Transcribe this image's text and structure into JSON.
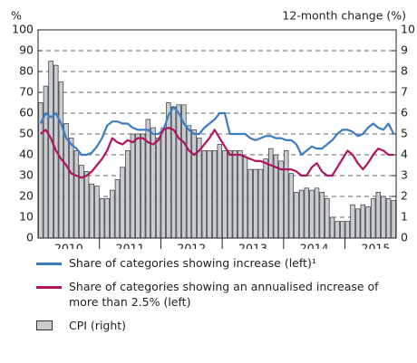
{
  "chart_data": {
    "type": "bar_line",
    "y_label": "%",
    "y2_label": "12-month change (%)",
    "years": [
      "2010",
      "2011",
      "2012",
      "2013",
      "2014",
      "2015"
    ],
    "categories": [
      null,
      null,
      null,
      null,
      null,
      null,
      null,
      null,
      null,
      null,
      null,
      null,
      null,
      null,
      null,
      null,
      null,
      null,
      null,
      null,
      null,
      null,
      null,
      null,
      null,
      null,
      null,
      null,
      null,
      null,
      null,
      null,
      null,
      null,
      null,
      null,
      null,
      null,
      null,
      null,
      null,
      null,
      null,
      null,
      null,
      null,
      null,
      null,
      null,
      null,
      null,
      null,
      null,
      null,
      null,
      null,
      null,
      null,
      null,
      null,
      null,
      null,
      null,
      null,
      null,
      null,
      null,
      null,
      null,
      null
    ],
    "ylim": [
      0,
      100
    ],
    "yticks": [
      0,
      10,
      20,
      30,
      40,
      50,
      60,
      70,
      80,
      90,
      100
    ],
    "y2lim": [
      0,
      10
    ],
    "y2ticks": [
      0,
      1,
      2,
      3,
      4,
      5,
      6,
      7,
      8,
      9,
      10
    ],
    "grid": true,
    "series": [
      {
        "name": "Share of categories showing increase (left)¹",
        "type": "line",
        "color": "#3b7cc4",
        "values": [
          55,
          60,
          58,
          60,
          55,
          48,
          45,
          43,
          40,
          40,
          41,
          44,
          48,
          54,
          56,
          56,
          55,
          55,
          53,
          52,
          52,
          52,
          50,
          50,
          52,
          59,
          63,
          60,
          55,
          52,
          50,
          50,
          53,
          55,
          57,
          60,
          60,
          50,
          50,
          50,
          50,
          48,
          47,
          48,
          49,
          49,
          48,
          48,
          47,
          47,
          45,
          40,
          42,
          44,
          43,
          43,
          45,
          47,
          50,
          52,
          52,
          51,
          49,
          50,
          53,
          55,
          53,
          52,
          55,
          50
        ]
      },
      {
        "name": "Share of categories showing an annualised increase of more than 2.5% (left)",
        "type": "line",
        "color": "#b3135f",
        "values": [
          50,
          52,
          48,
          42,
          38,
          35,
          31,
          30,
          29,
          30,
          32,
          35,
          38,
          42,
          48,
          46,
          45,
          47,
          46,
          48,
          48,
          46,
          45,
          47,
          52,
          53,
          52,
          48,
          46,
          42,
          40,
          42,
          45,
          48,
          52,
          48,
          44,
          40,
          40,
          40,
          39,
          38,
          37,
          37,
          36,
          35,
          34,
          33,
          33,
          33,
          32,
          30,
          30,
          34,
          36,
          32,
          30,
          30,
          34,
          38,
          42,
          40,
          36,
          33,
          36,
          40,
          43,
          42,
          40,
          40
        ]
      },
      {
        "name": "CPI (right)",
        "type": "bar",
        "axis": "y2",
        "color": "#c9cdd2",
        "values": [
          6.5,
          7.3,
          8.5,
          8.3,
          7.5,
          5.5,
          4.8,
          4.2,
          3.5,
          3.2,
          2.6,
          2.5,
          1.9,
          1.9,
          2.3,
          2.8,
          3.4,
          4.2,
          5.0,
          5.0,
          5.0,
          5.7,
          5.3,
          4.8,
          5.3,
          6.5,
          6.3,
          6.4,
          6.4,
          5.4,
          5.2,
          4.8,
          4.2,
          4.2,
          4.2,
          4.5,
          4.2,
          4.2,
          4.2,
          4.2,
          3.9,
          3.3,
          3.3,
          3.3,
          3.8,
          4.3,
          4.0,
          3.7,
          4.2,
          3.1,
          2.2,
          2.3,
          2.4,
          2.3,
          2.4,
          2.2,
          1.9,
          1.0,
          0.8,
          0.8,
          0.8,
          1.6,
          1.4,
          1.6,
          1.5,
          1.9,
          2.2,
          2.0,
          1.9,
          1.8
        ]
      }
    ]
  }
}
